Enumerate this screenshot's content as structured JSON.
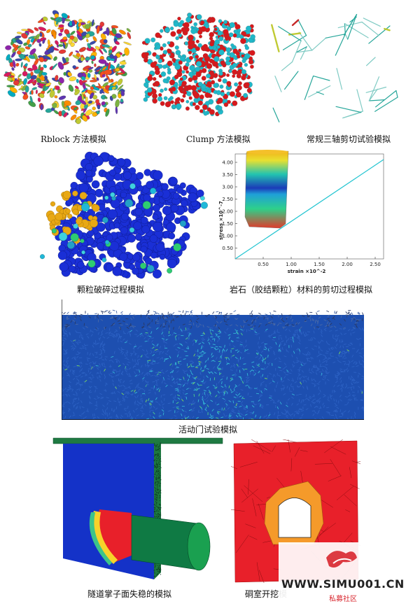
{
  "captions": {
    "rblock": "Rblock 方法模拟",
    "clump": "Clump 方法模拟",
    "triaxial": "常规三轴剪切试验模拟",
    "particle": "颗粒破碎过程模拟",
    "rock_shear": "岩石（胶结颗粒）材料的剪切过程模拟",
    "trapdoor": "活动门试验模拟",
    "tunnel": "隧道掌子面失稳的模拟",
    "chamber": "硐室开挖模"
  },
  "rock_plot": {
    "y_label": "stress ×10^-7",
    "x_label": "strain ×10^-2",
    "y_ticks": [
      "4.00",
      "3.50",
      "3.00",
      "2.50",
      "2.00",
      "1.50",
      "1.00",
      "0.50"
    ],
    "x_ticks": [
      "0.50",
      "1.00",
      "1.50",
      "2.00",
      "2.50"
    ]
  },
  "watermark": {
    "site": "WWW.SIMU001.CN",
    "tagline": "私募社区"
  },
  "colors": {
    "particle_blue": "#1a2fd6",
    "particle_gold": "#e8a814",
    "trapdoor_field": "#1d4fb0",
    "tunnel_blue": "#1432c8",
    "tunnel_green": "#1f8a4a",
    "chamber_red": "#e8202a",
    "chamber_orange": "#f59a2a",
    "watermark_red": "#d8262e"
  }
}
